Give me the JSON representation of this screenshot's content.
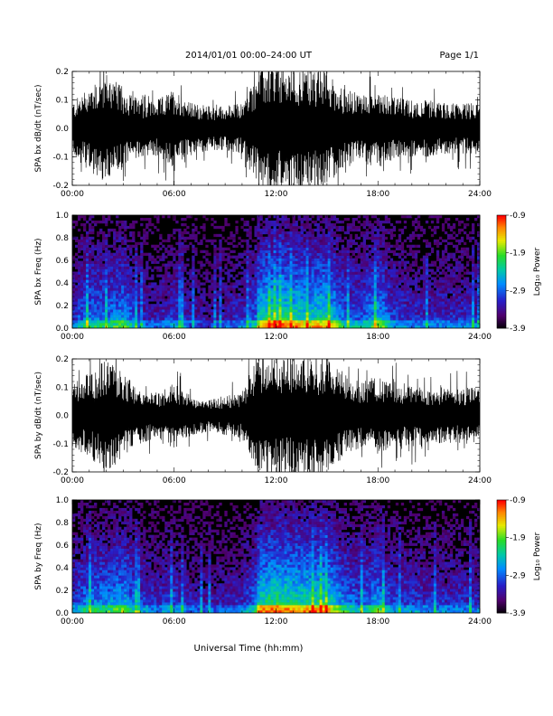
{
  "header": {
    "title": "2014/01/01   00:00–24:00 UT",
    "page": "Page 1/1"
  },
  "xaxis": {
    "label": "Universal Time (hh:mm)",
    "ticks": [
      "00:00",
      "06:00",
      "12:00",
      "18:00",
      "24:00"
    ]
  },
  "colorbar": {
    "label": "Log₁₀ Power",
    "ticks": [
      "-0.9",
      "-1.9",
      "-2.9",
      "-3.9"
    ],
    "range": [
      -3.9,
      -0.9
    ]
  },
  "chart_data": [
    {
      "type": "line",
      "id": "bx-dbdt",
      "ylabel": "SPA bx dB/dt (nT/sec)",
      "ylim": [
        -0.2,
        0.2
      ],
      "yticks": [
        "0.2",
        "0.1",
        "0.0",
        "-0.1",
        "-0.2"
      ],
      "xlim": [
        0,
        24
      ],
      "envelope": {
        "hours": [
          0,
          1,
          2,
          3,
          4,
          5,
          6,
          7,
          8,
          9,
          10,
          10.8,
          11,
          12,
          13,
          14,
          15,
          16,
          17,
          18,
          19,
          20,
          21,
          22,
          23,
          24
        ],
        "amplitude": [
          0.09,
          0.15,
          0.2,
          0.14,
          0.1,
          0.1,
          0.14,
          0.09,
          0.08,
          0.08,
          0.09,
          0.18,
          0.22,
          0.22,
          0.21,
          0.21,
          0.2,
          0.14,
          0.12,
          0.14,
          0.11,
          0.1,
          0.1,
          0.09,
          0.09,
          0.09
        ]
      }
    },
    {
      "type": "heatmap",
      "id": "bx-freq",
      "ylabel": "SPA bx Freq (Hz)",
      "ylim": [
        0.0,
        1.0
      ],
      "yticks": [
        "1.0",
        "0.8",
        "0.6",
        "0.4",
        "0.2",
        "0.0"
      ],
      "xlim": [
        0,
        24
      ],
      "activity": {
        "hours": [
          0,
          1,
          2,
          3,
          4,
          5,
          6,
          7,
          8,
          9,
          10,
          10.8,
          11,
          12,
          13,
          14,
          15,
          16,
          17,
          18,
          19,
          20,
          21,
          22,
          23,
          24
        ],
        "level": [
          0.35,
          0.55,
          0.5,
          0.6,
          0.35,
          0.3,
          0.4,
          0.3,
          0.25,
          0.3,
          0.35,
          0.5,
          0.75,
          0.85,
          0.8,
          0.75,
          0.8,
          0.5,
          0.45,
          0.65,
          0.4,
          0.35,
          0.35,
          0.35,
          0.35,
          0.35
        ]
      }
    },
    {
      "type": "line",
      "id": "by-dbdt",
      "ylabel": "SPA by dB/dt (nT/sec)",
      "ylim": [
        -0.2,
        0.2
      ],
      "yticks": [
        "0.2",
        "0.1",
        "0.0",
        "-0.1",
        "-0.2"
      ],
      "xlim": [
        0,
        24
      ],
      "envelope": {
        "hours": [
          0,
          1,
          2,
          3,
          4,
          5,
          6,
          7,
          8,
          9,
          10,
          10.8,
          11,
          12,
          13,
          14,
          15,
          16,
          17,
          18,
          19,
          20,
          21,
          22,
          23,
          24
        ],
        "amplitude": [
          0.12,
          0.15,
          0.2,
          0.15,
          0.1,
          0.08,
          0.12,
          0.07,
          0.06,
          0.07,
          0.08,
          0.2,
          0.22,
          0.22,
          0.22,
          0.21,
          0.2,
          0.15,
          0.12,
          0.14,
          0.12,
          0.11,
          0.1,
          0.1,
          0.1,
          0.1
        ]
      }
    },
    {
      "type": "heatmap",
      "id": "by-freq",
      "ylabel": "SPA by Freq (Hz)",
      "ylim": [
        0.0,
        1.0
      ],
      "yticks": [
        "1.0",
        "0.8",
        "0.6",
        "0.4",
        "0.2",
        "0.0"
      ],
      "xlim": [
        0,
        24
      ],
      "activity": {
        "hours": [
          0,
          1,
          2,
          3,
          4,
          5,
          6,
          7,
          8,
          9,
          10,
          10.8,
          11,
          12,
          13,
          14,
          15,
          16,
          17,
          18,
          19,
          20,
          21,
          22,
          23,
          24
        ],
        "level": [
          0.4,
          0.55,
          0.55,
          0.65,
          0.4,
          0.35,
          0.4,
          0.3,
          0.3,
          0.3,
          0.35,
          0.5,
          0.8,
          0.85,
          0.8,
          0.8,
          0.8,
          0.55,
          0.45,
          0.6,
          0.4,
          0.4,
          0.35,
          0.35,
          0.35,
          0.35
        ]
      }
    }
  ]
}
